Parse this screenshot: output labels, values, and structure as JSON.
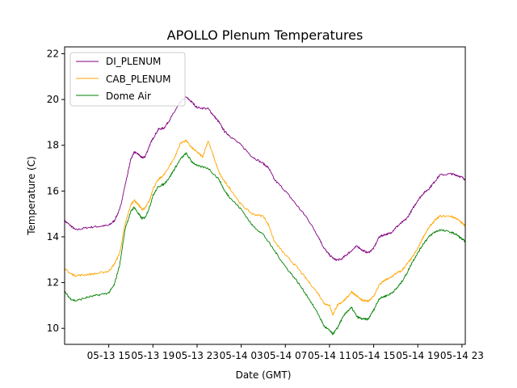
{
  "chart_data": {
    "type": "line",
    "title": "APOLLO Plenum Temperatures",
    "xlabel": "Date (GMT)",
    "ylabel": "Temperature (C)",
    "x_unit": "hours since 05-13 11:00 GMT",
    "xlim": [
      0,
      36.3
    ],
    "ylim": [
      9.3,
      22.3
    ],
    "x_ticks": [
      {
        "value": 4,
        "label": "05-13 15"
      },
      {
        "value": 8,
        "label": "05-13 19"
      },
      {
        "value": 12,
        "label": "05-13 23"
      },
      {
        "value": 16,
        "label": "05-14 03"
      },
      {
        "value": 20,
        "label": "05-14 07"
      },
      {
        "value": 24,
        "label": "05-14 11"
      },
      {
        "value": 28,
        "label": "05-14 15"
      },
      {
        "value": 32,
        "label": "05-14 19"
      },
      {
        "value": 36,
        "label": "05-14 23"
      }
    ],
    "y_ticks": [
      {
        "value": 10,
        "label": "10"
      },
      {
        "value": 12,
        "label": "12"
      },
      {
        "value": 14,
        "label": "14"
      },
      {
        "value": 16,
        "label": "16"
      },
      {
        "value": 18,
        "label": "18"
      },
      {
        "value": 20,
        "label": "20"
      },
      {
        "value": 22,
        "label": "22"
      }
    ],
    "legend_position": "top-left",
    "series": [
      {
        "name": "DI_PLENUM",
        "color": "#800080",
        "points": [
          [
            0,
            14.7
          ],
          [
            0.5,
            14.5
          ],
          [
            1,
            14.3
          ],
          [
            2,
            14.4
          ],
          [
            3,
            14.45
          ],
          [
            4,
            14.5
          ],
          [
            4.5,
            14.7
          ],
          [
            5,
            15.2
          ],
          [
            5.5,
            16.3
          ],
          [
            6,
            17.4
          ],
          [
            6.3,
            17.7
          ],
          [
            6.7,
            17.6
          ],
          [
            7,
            17.45
          ],
          [
            7.3,
            17.5
          ],
          [
            7.7,
            18
          ],
          [
            8,
            18.3
          ],
          [
            8.5,
            18.7
          ],
          [
            9,
            18.75
          ],
          [
            9.5,
            19.1
          ],
          [
            10,
            19.5
          ],
          [
            10.5,
            19.9
          ],
          [
            11,
            20.1
          ],
          [
            11.5,
            19.9
          ],
          [
            12,
            19.65
          ],
          [
            13,
            19.6
          ],
          [
            13.5,
            19.3
          ],
          [
            14,
            19
          ],
          [
            14.5,
            18.6
          ],
          [
            15,
            18.4
          ],
          [
            16,
            18
          ],
          [
            17,
            17.5
          ],
          [
            18,
            17.2
          ],
          [
            18.5,
            17
          ],
          [
            19,
            16.5
          ],
          [
            20,
            16
          ],
          [
            21,
            15.4
          ],
          [
            22,
            14.8
          ],
          [
            23,
            14
          ],
          [
            23.5,
            13.5
          ],
          [
            24,
            13.2
          ],
          [
            24.5,
            13
          ],
          [
            25,
            13
          ],
          [
            25.5,
            13.2
          ],
          [
            26,
            13.4
          ],
          [
            26.5,
            13.6
          ],
          [
            27,
            13.4
          ],
          [
            27.5,
            13.3
          ],
          [
            28,
            13.5
          ],
          [
            28.5,
            14
          ],
          [
            29,
            14.1
          ],
          [
            29.5,
            14.15
          ],
          [
            30,
            14.4
          ],
          [
            30.5,
            14.6
          ],
          [
            31,
            14.8
          ],
          [
            31.5,
            15.2
          ],
          [
            32,
            15.6
          ],
          [
            32.5,
            15.9
          ],
          [
            33,
            16.1
          ],
          [
            33.5,
            16.4
          ],
          [
            34,
            16.7
          ],
          [
            35,
            16.75
          ],
          [
            35.5,
            16.7
          ],
          [
            36,
            16.6
          ],
          [
            36.3,
            16.5
          ]
        ]
      },
      {
        "name": "CAB_PLENUM",
        "color": "#ffa500",
        "points": [
          [
            0,
            12.6
          ],
          [
            0.5,
            12.4
          ],
          [
            1,
            12.3
          ],
          [
            2,
            12.35
          ],
          [
            3,
            12.4
          ],
          [
            4,
            12.5
          ],
          [
            4.5,
            12.8
          ],
          [
            5,
            13.3
          ],
          [
            5.5,
            14.6
          ],
          [
            6,
            15.4
          ],
          [
            6.3,
            15.6
          ],
          [
            6.7,
            15.4
          ],
          [
            7,
            15.2
          ],
          [
            7.3,
            15.25
          ],
          [
            7.7,
            15.6
          ],
          [
            8,
            16.1
          ],
          [
            8.5,
            16.5
          ],
          [
            9,
            16.7
          ],
          [
            9.5,
            17.1
          ],
          [
            10,
            17.5
          ],
          [
            10.5,
            18.1
          ],
          [
            11,
            18.2
          ],
          [
            11.5,
            17.9
          ],
          [
            12,
            17.7
          ],
          [
            12.5,
            17.5
          ],
          [
            13,
            18.2
          ],
          [
            13.5,
            17.5
          ],
          [
            14,
            16.8
          ],
          [
            14.5,
            16.4
          ],
          [
            15,
            16.1
          ],
          [
            16,
            15.4
          ],
          [
            17,
            15
          ],
          [
            18,
            14.9
          ],
          [
            18.5,
            14.5
          ],
          [
            19,
            13.8
          ],
          [
            20,
            13.2
          ],
          [
            21,
            12.7
          ],
          [
            22,
            12.1
          ],
          [
            23,
            11.5
          ],
          [
            23.5,
            11.1
          ],
          [
            24,
            11
          ],
          [
            24.3,
            10.6
          ],
          [
            24.7,
            11
          ],
          [
            25,
            11.1
          ],
          [
            25.5,
            11.3
          ],
          [
            26,
            11.6
          ],
          [
            26.5,
            11.4
          ],
          [
            27,
            11.2
          ],
          [
            27.5,
            11.2
          ],
          [
            28,
            11.4
          ],
          [
            28.5,
            11.9
          ],
          [
            29,
            12.1
          ],
          [
            29.5,
            12.2
          ],
          [
            30,
            12.4
          ],
          [
            30.5,
            12.5
          ],
          [
            31,
            12.8
          ],
          [
            31.5,
            13.1
          ],
          [
            32,
            13.5
          ],
          [
            32.5,
            14
          ],
          [
            33,
            14.4
          ],
          [
            33.5,
            14.7
          ],
          [
            34,
            14.9
          ],
          [
            35,
            14.9
          ],
          [
            35.5,
            14.8
          ],
          [
            36,
            14.6
          ],
          [
            36.3,
            14.5
          ]
        ]
      },
      {
        "name": "Dome Air",
        "color": "#008000",
        "points": [
          [
            0,
            11.6
          ],
          [
            0.5,
            11.3
          ],
          [
            1,
            11.2
          ],
          [
            2,
            11.35
          ],
          [
            3,
            11.45
          ],
          [
            4,
            11.55
          ],
          [
            4.5,
            11.9
          ],
          [
            5,
            12.8
          ],
          [
            5.5,
            14.4
          ],
          [
            6,
            15.1
          ],
          [
            6.3,
            15.3
          ],
          [
            6.7,
            15.0
          ],
          [
            7,
            14.8
          ],
          [
            7.3,
            14.85
          ],
          [
            7.7,
            15.3
          ],
          [
            8,
            15.8
          ],
          [
            8.5,
            16.2
          ],
          [
            9,
            16.3
          ],
          [
            9.5,
            16.6
          ],
          [
            10,
            17
          ],
          [
            10.5,
            17.4
          ],
          [
            11,
            17.65
          ],
          [
            11.5,
            17.3
          ],
          [
            12,
            17.1
          ],
          [
            13,
            17
          ],
          [
            14,
            16.5
          ],
          [
            14.5,
            16
          ],
          [
            15,
            15.7
          ],
          [
            16,
            15.2
          ],
          [
            17,
            14.5
          ],
          [
            18,
            14.1
          ],
          [
            19,
            13.4
          ],
          [
            20,
            12.7
          ],
          [
            21,
            12.1
          ],
          [
            22,
            11.4
          ],
          [
            23,
            10.6
          ],
          [
            23.5,
            10.1
          ],
          [
            24,
            9.9
          ],
          [
            24.3,
            9.75
          ],
          [
            24.7,
            10
          ],
          [
            25,
            10.3
          ],
          [
            25.5,
            10.7
          ],
          [
            26,
            10.9
          ],
          [
            26.5,
            10.5
          ],
          [
            27,
            10.4
          ],
          [
            27.5,
            10.4
          ],
          [
            28,
            10.8
          ],
          [
            28.5,
            11.3
          ],
          [
            29,
            11.4
          ],
          [
            29.5,
            11.5
          ],
          [
            30,
            11.7
          ],
          [
            30.5,
            12
          ],
          [
            31,
            12.4
          ],
          [
            31.5,
            12.9
          ],
          [
            32,
            13.3
          ],
          [
            32.5,
            13.7
          ],
          [
            33,
            14
          ],
          [
            33.5,
            14.2
          ],
          [
            34,
            14.3
          ],
          [
            35,
            14.2
          ],
          [
            35.5,
            14.1
          ],
          [
            36,
            13.9
          ],
          [
            36.3,
            13.8
          ]
        ]
      }
    ]
  }
}
